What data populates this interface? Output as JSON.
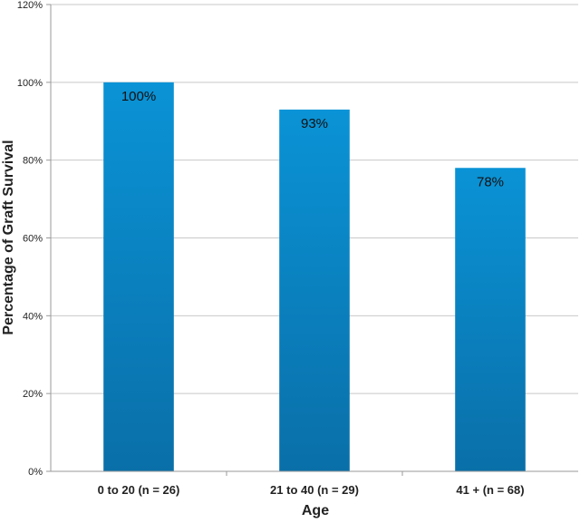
{
  "chart_data": {
    "type": "bar",
    "title": "",
    "xlabel": "Age",
    "ylabel": "Percentage of Graft Survival",
    "categories": [
      "0 to 20 (n = 26)",
      "21 to 40 (n = 29)",
      "41 + (n = 68)"
    ],
    "values": [
      100,
      93,
      78
    ],
    "data_labels": [
      "100%",
      "93%",
      "78%"
    ],
    "ylim": [
      0,
      120
    ],
    "yticks": [
      0,
      20,
      40,
      60,
      80,
      100,
      120
    ],
    "ytick_labels": [
      "0%",
      "20%",
      "40%",
      "60%",
      "80%",
      "100%",
      "120%"
    ],
    "grid": true,
    "legend": "none",
    "colors": {
      "bar_top": "#0a93d6",
      "bar_bottom": "#0a6fa8",
      "grid": "#c8c8c8",
      "axis": "#9a9a9a"
    }
  }
}
